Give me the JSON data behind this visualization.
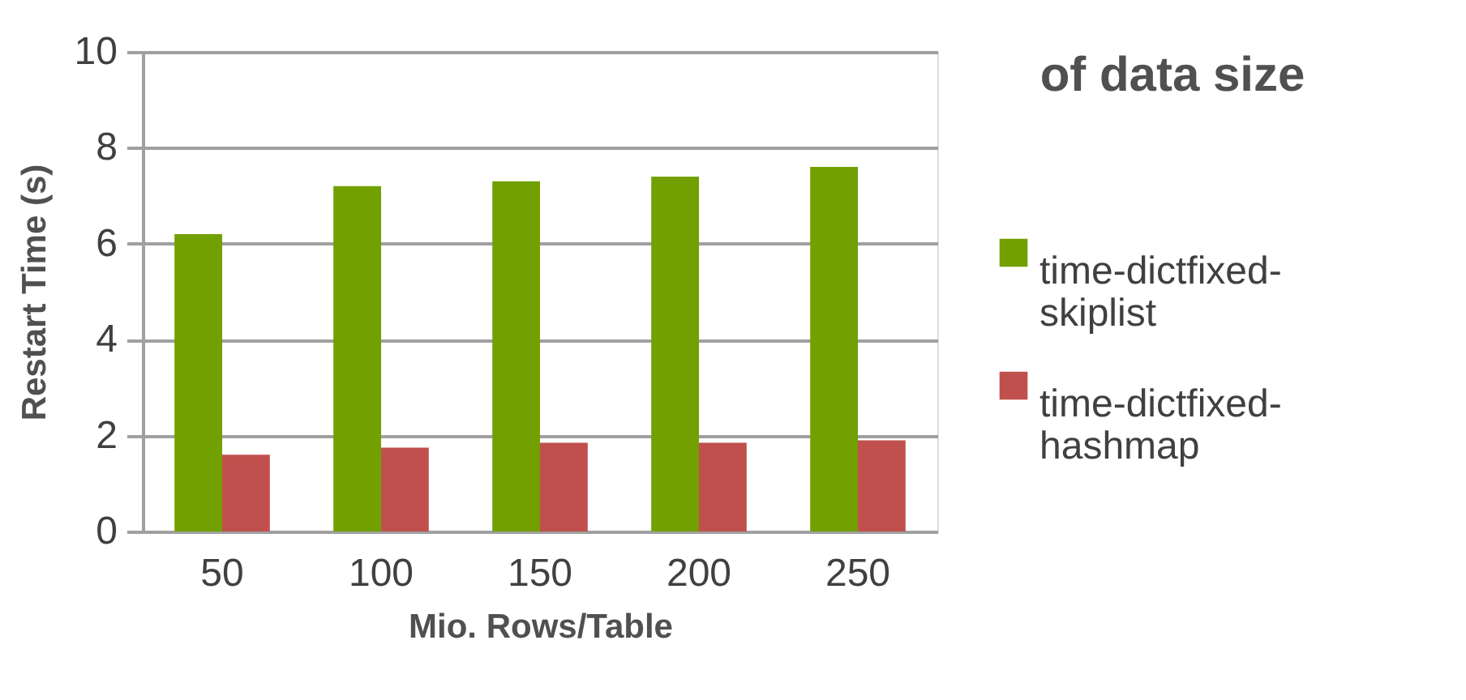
{
  "chart_data": {
    "type": "bar",
    "xlabel": "Mio. Rows/Table",
    "ylabel": "Restart Time (s)",
    "categories": [
      "50",
      "100",
      "150",
      "200",
      "250"
    ],
    "series": [
      {
        "name": "time-dictfixed-skiplist",
        "color": "#72a000",
        "values": [
          6.2,
          7.2,
          7.3,
          7.4,
          7.6
        ]
      },
      {
        "name": "time-dictfixed-hashmap",
        "color": "#c0504d",
        "values": [
          1.6,
          1.75,
          1.85,
          1.85,
          1.9
        ]
      }
    ],
    "ylim": [
      0,
      10
    ],
    "yticks": [
      0,
      2,
      4,
      6,
      8,
      10
    ],
    "grid": "y",
    "legend": "right",
    "annotations": [
      "of data size"
    ]
  }
}
